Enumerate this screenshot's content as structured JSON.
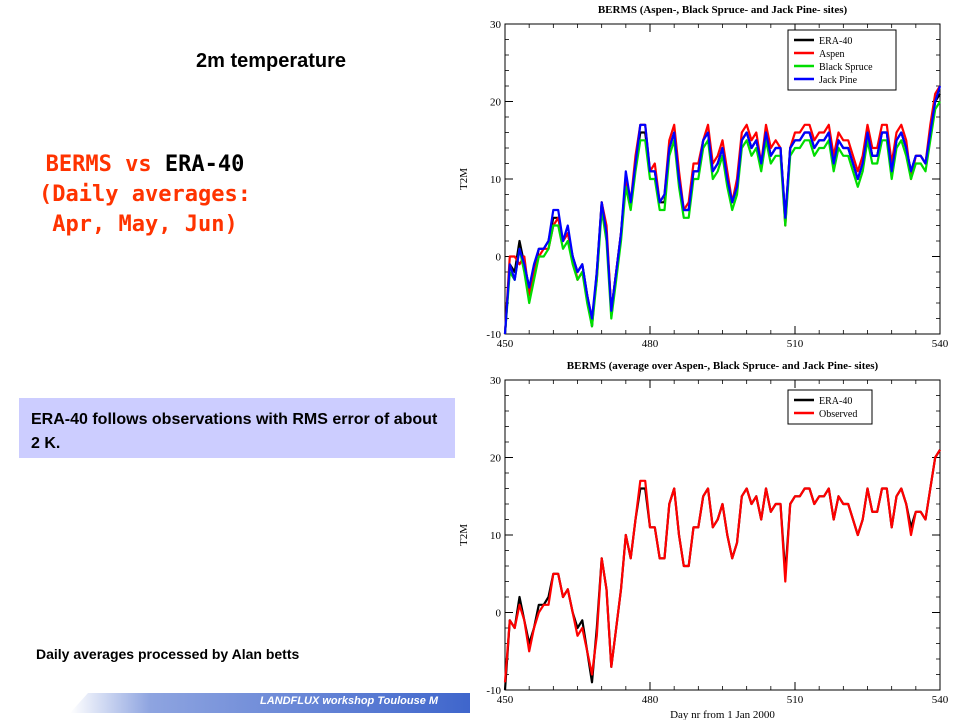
{
  "slide": {
    "subtitle": "2m  temperature",
    "heading_line1_part1": "BERMS vs ",
    "heading_line1_part2": "ERA-40",
    "heading_line2": "(Daily averages:",
    "heading_line3": "Apr, May, Jun)",
    "note": "ERA-40 follows observations with RMS error of about 2 K.",
    "credit": "Daily averages processed by Alan betts",
    "footer": "LANDFLUX workshop Toulouse M",
    "colors": {
      "heading": "#ff3300",
      "note_bg": "#cccdff",
      "footer_band": "#3f66cc"
    }
  },
  "chart_data": [
    {
      "type": "line",
      "title": "BERMS (Aspen-, Black Spruce- and Jack Pine- sites)",
      "xlabel": "",
      "ylabel": "T2M",
      "xlim": [
        450,
        540
      ],
      "ylim": [
        -10,
        30
      ],
      "xticks": [
        450,
        480,
        510,
        540
      ],
      "yticks": [
        -10,
        0,
        10,
        20,
        30
      ],
      "legend_position": "top-right",
      "x": [
        450,
        451,
        452,
        453,
        454,
        455,
        456,
        457,
        458,
        459,
        460,
        461,
        462,
        463,
        464,
        465,
        466,
        467,
        468,
        469,
        470,
        471,
        472,
        473,
        474,
        475,
        476,
        477,
        478,
        479,
        480,
        481,
        482,
        483,
        484,
        485,
        486,
        487,
        488,
        489,
        490,
        491,
        492,
        493,
        494,
        495,
        496,
        497,
        498,
        499,
        500,
        501,
        502,
        503,
        504,
        505,
        506,
        507,
        508,
        509,
        510,
        511,
        512,
        513,
        514,
        515,
        516,
        517,
        518,
        519,
        520,
        521,
        522,
        523,
        524,
        525,
        526,
        527,
        528,
        529,
        530,
        531,
        532,
        533,
        534,
        535,
        536,
        537,
        538,
        539,
        540
      ],
      "series": [
        {
          "name": "ERA-40",
          "color": "#000000",
          "values": [
            -10,
            -1,
            -2,
            2,
            -1,
            -4,
            -2,
            1,
            1,
            2,
            5,
            5,
            2,
            3,
            0,
            -2,
            -1,
            -5,
            -9,
            -2,
            7,
            3,
            -7,
            -2,
            3,
            10,
            7,
            12,
            16,
            16,
            11,
            11,
            7,
            7,
            14,
            16,
            10,
            6,
            6,
            11,
            11,
            15,
            16,
            11,
            12,
            14,
            10,
            7,
            9,
            15,
            16,
            14,
            15,
            12,
            16,
            13,
            14,
            14,
            5,
            14,
            15,
            15,
            16,
            16,
            14,
            15,
            15,
            16,
            12,
            15,
            14,
            14,
            12,
            10,
            12,
            16,
            13,
            13,
            16,
            16,
            11,
            15,
            16,
            14,
            11,
            13,
            13,
            12,
            16,
            20,
            21
          ]
        },
        {
          "name": "Aspen",
          "color": "#ff0000",
          "values": [
            -10,
            0,
            0,
            -1,
            0,
            -5,
            -2,
            0,
            1,
            1,
            4,
            5,
            2,
            3,
            0,
            -3,
            -2,
            -5,
            -8,
            -3,
            7,
            4,
            -7,
            -2,
            3,
            10,
            7,
            13,
            17,
            17,
            11,
            12,
            7,
            8,
            15,
            17,
            11,
            6,
            7,
            12,
            12,
            15,
            17,
            12,
            13,
            15,
            11,
            7,
            10,
            16,
            17,
            15,
            16,
            12,
            17,
            14,
            15,
            14,
            4,
            14,
            16,
            16,
            17,
            17,
            15,
            16,
            16,
            17,
            13,
            16,
            15,
            15,
            13,
            11,
            13,
            17,
            14,
            14,
            17,
            17,
            12,
            16,
            17,
            15,
            10,
            13,
            13,
            12,
            17,
            21,
            22
          ]
        },
        {
          "name": "Black Spruce",
          "color": "#00dd00",
          "values": [
            -10,
            -2,
            -3,
            1,
            -2,
            -6,
            -3,
            0,
            0,
            1,
            4,
            4,
            1,
            2,
            -1,
            -3,
            -2,
            -6,
            -9,
            -3,
            6,
            2,
            -8,
            -3,
            2,
            9,
            6,
            11,
            15,
            15,
            10,
            10,
            6,
            6,
            13,
            15,
            9,
            5,
            5,
            10,
            10,
            14,
            15,
            10,
            11,
            13,
            9,
            6,
            8,
            14,
            15,
            13,
            14,
            11,
            15,
            12,
            13,
            13,
            4,
            13,
            14,
            14,
            15,
            15,
            13,
            14,
            14,
            15,
            11,
            14,
            13,
            13,
            11,
            9,
            11,
            15,
            12,
            12,
            15,
            15,
            10,
            14,
            15,
            13,
            10,
            12,
            12,
            11,
            15,
            19,
            20
          ]
        },
        {
          "name": "Jack Pine",
          "color": "#0000ff",
          "values": [
            -10,
            -1,
            -3,
            1,
            -1,
            -4,
            -1,
            1,
            1,
            2,
            6,
            6,
            2,
            4,
            0,
            -2,
            -1,
            -5,
            -8,
            -2,
            7,
            3,
            -7,
            -2,
            3,
            11,
            7,
            12,
            17,
            17,
            11,
            11,
            7,
            8,
            14,
            16,
            10,
            6,
            6,
            11,
            11,
            15,
            16,
            11,
            12,
            14,
            10,
            7,
            9,
            15,
            16,
            14,
            15,
            12,
            16,
            13,
            14,
            14,
            5,
            14,
            15,
            15,
            16,
            16,
            14,
            15,
            15,
            16,
            12,
            15,
            14,
            14,
            12,
            10,
            12,
            16,
            13,
            13,
            16,
            16,
            11,
            15,
            16,
            14,
            11,
            13,
            13,
            12,
            16,
            20,
            22
          ]
        }
      ]
    },
    {
      "type": "line",
      "title": "BERMS (average over Aspen-, Black Spruce- and Jack Pine- sites)",
      "xlabel": "Day nr from 1 Jan 2000",
      "ylabel": "T2M",
      "xlim": [
        450,
        540
      ],
      "ylim": [
        -10,
        30
      ],
      "xticks": [
        450,
        480,
        510,
        540
      ],
      "yticks": [
        -10,
        0,
        10,
        20,
        30
      ],
      "legend_position": "top-right",
      "x": [
        450,
        451,
        452,
        453,
        454,
        455,
        456,
        457,
        458,
        459,
        460,
        461,
        462,
        463,
        464,
        465,
        466,
        467,
        468,
        469,
        470,
        471,
        472,
        473,
        474,
        475,
        476,
        477,
        478,
        479,
        480,
        481,
        482,
        483,
        484,
        485,
        486,
        487,
        488,
        489,
        490,
        491,
        492,
        493,
        494,
        495,
        496,
        497,
        498,
        499,
        500,
        501,
        502,
        503,
        504,
        505,
        506,
        507,
        508,
        509,
        510,
        511,
        512,
        513,
        514,
        515,
        516,
        517,
        518,
        519,
        520,
        521,
        522,
        523,
        524,
        525,
        526,
        527,
        528,
        529,
        530,
        531,
        532,
        533,
        534,
        535,
        536,
        537,
        538,
        539,
        540
      ],
      "series": [
        {
          "name": "ERA-40",
          "color": "#000000",
          "values": [
            -10,
            -1,
            -2,
            2,
            -1,
            -4,
            -2,
            1,
            1,
            2,
            5,
            5,
            2,
            3,
            0,
            -2,
            -1,
            -5,
            -9,
            -2,
            7,
            3,
            -7,
            -2,
            3,
            10,
            7,
            12,
            16,
            16,
            11,
            11,
            7,
            7,
            14,
            16,
            10,
            6,
            6,
            11,
            11,
            15,
            16,
            11,
            12,
            14,
            10,
            7,
            9,
            15,
            16,
            14,
            15,
            12,
            16,
            13,
            14,
            14,
            5,
            14,
            15,
            15,
            16,
            16,
            14,
            15,
            15,
            16,
            12,
            15,
            14,
            14,
            12,
            10,
            12,
            16,
            13,
            13,
            16,
            16,
            11,
            15,
            16,
            14,
            11,
            13,
            13,
            12,
            16,
            20,
            21
          ]
        },
        {
          "name": "Observed",
          "color": "#ff0000",
          "values": [
            -9,
            -1,
            -2,
            1,
            -1,
            -5,
            -2,
            0,
            1,
            1,
            5,
            5,
            2,
            3,
            0,
            -3,
            -2,
            -5,
            -8,
            -3,
            7,
            3,
            -7,
            -2,
            3,
            10,
            7,
            12,
            17,
            17,
            11,
            11,
            7,
            7,
            14,
            16,
            10,
            6,
            6,
            11,
            11,
            15,
            16,
            11,
            12,
            14,
            10,
            7,
            9,
            15,
            16,
            14,
            15,
            12,
            16,
            13,
            14,
            14,
            4,
            14,
            15,
            15,
            16,
            16,
            14,
            15,
            15,
            16,
            12,
            15,
            14,
            14,
            12,
            10,
            12,
            16,
            13,
            13,
            16,
            16,
            11,
            15,
            16,
            14,
            10,
            13,
            13,
            12,
            16,
            20,
            21
          ]
        }
      ]
    }
  ]
}
